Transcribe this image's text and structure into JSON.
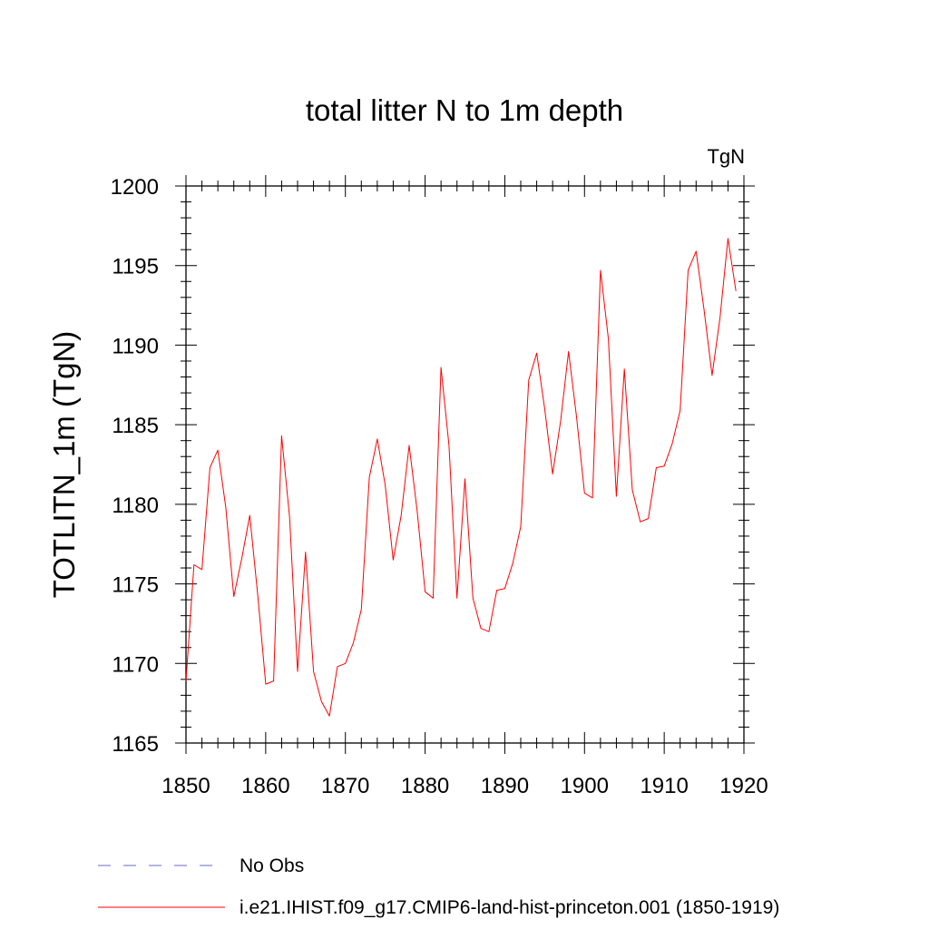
{
  "chart_data": {
    "type": "line",
    "title": "total litter N to 1m depth",
    "units": "TgN",
    "ylabel": "TOTLITN_1m  (TgN)",
    "xlabel": "",
    "xlim": [
      1850,
      1920
    ],
    "ylim": [
      1165,
      1200
    ],
    "x_ticks": [
      1850,
      1860,
      1870,
      1880,
      1890,
      1900,
      1910,
      1920
    ],
    "y_ticks": [
      1165,
      1170,
      1175,
      1180,
      1185,
      1190,
      1195,
      1200
    ],
    "x_tick_labels": [
      "1850",
      "1860",
      "1870",
      "1880",
      "1890",
      "1900",
      "1910",
      "1920"
    ],
    "y_tick_labels": [
      "1165",
      "1170",
      "1175",
      "1180",
      "1185",
      "1190",
      "1195",
      "1200"
    ],
    "grid": false,
    "legend_position": "bottom",
    "series": [
      {
        "name": "i.e21.IHIST.f09_g17.CMIP6-land-hist-princeton.001 (1850-1919)",
        "color": "#ff0000",
        "style": "solid",
        "x": [
          1850,
          1851,
          1852,
          1853,
          1854,
          1855,
          1856,
          1857,
          1858,
          1859,
          1860,
          1861,
          1862,
          1863,
          1864,
          1865,
          1866,
          1867,
          1868,
          1869,
          1870,
          1871,
          1872,
          1873,
          1874,
          1875,
          1876,
          1877,
          1878,
          1879,
          1880,
          1881,
          1882,
          1883,
          1884,
          1885,
          1886,
          1887,
          1888,
          1889,
          1890,
          1891,
          1892,
          1893,
          1894,
          1895,
          1896,
          1897,
          1898,
          1899,
          1900,
          1901,
          1902,
          1903,
          1904,
          1905,
          1906,
          1907,
          1908,
          1909,
          1910,
          1911,
          1912,
          1913,
          1914,
          1915,
          1916,
          1917,
          1918,
          1919
        ],
        "y": [
          1168.9,
          1176.2,
          1175.9,
          1182.3,
          1183.4,
          1179.8,
          1174.2,
          1176.6,
          1179.3,
          1174.3,
          1168.7,
          1168.9,
          1184.3,
          1179.2,
          1169.5,
          1177.0,
          1169.5,
          1167.6,
          1166.7,
          1169.8,
          1170.0,
          1171.3,
          1173.4,
          1181.7,
          1184.1,
          1181.2,
          1176.5,
          1179.3,
          1183.7,
          1179.6,
          1174.5,
          1174.1,
          1188.6,
          1183.7,
          1174.1,
          1181.6,
          1174.1,
          1172.2,
          1172.0,
          1174.6,
          1174.7,
          1176.3,
          1178.6,
          1187.8,
          1189.5,
          1186.0,
          1181.9,
          1185.2,
          1189.6,
          1185.5,
          1180.7,
          1180.4,
          1194.7,
          1190.4,
          1180.5,
          1188.5,
          1180.9,
          1178.9,
          1179.1,
          1182.3,
          1182.4,
          1183.8,
          1185.9,
          1194.7,
          1195.9,
          1192.2,
          1188.1,
          1191.7,
          1196.7,
          1193.4
        ]
      }
    ],
    "legend": [
      {
        "label": "No Obs",
        "color": "#6a6acd",
        "style": "dashed"
      },
      {
        "label": "i.e21.IHIST.f09_g17.CMIP6-land-hist-princeton.001 (1850-1919)",
        "color": "#ff0000",
        "style": "solid"
      }
    ]
  }
}
